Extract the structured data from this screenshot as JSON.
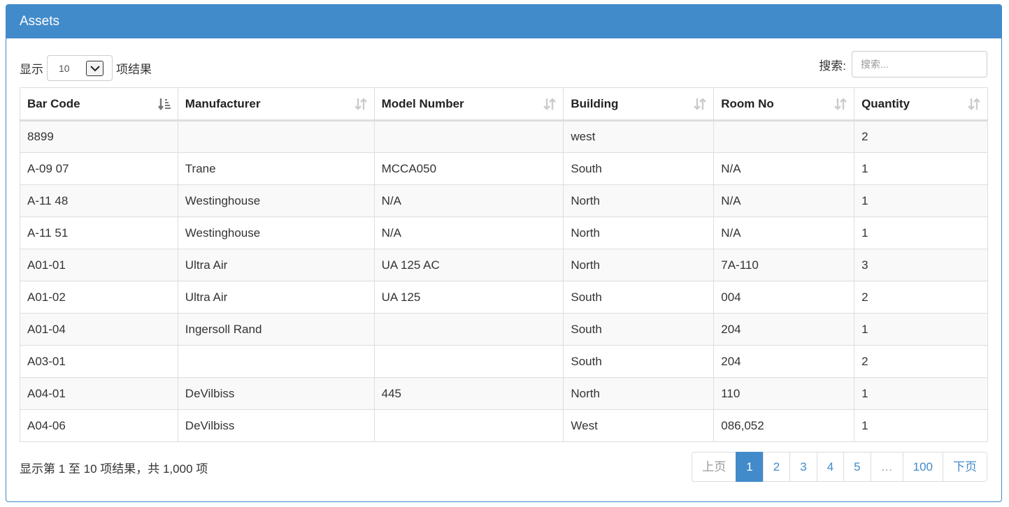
{
  "panel": {
    "title": "Assets"
  },
  "length": {
    "prefix": "显示",
    "value": "10",
    "suffix": "项结果"
  },
  "search": {
    "label": "搜索:",
    "placeholder": "搜索..."
  },
  "table": {
    "columns": [
      {
        "label": "Bar Code",
        "sort": "sorted-asc"
      },
      {
        "label": "Manufacturer",
        "sort": "sortable"
      },
      {
        "label": "Model Number",
        "sort": "sortable"
      },
      {
        "label": "Building",
        "sort": "sortable"
      },
      {
        "label": "Room No",
        "sort": "sortable"
      },
      {
        "label": "Quantity",
        "sort": "sortable"
      }
    ],
    "rows": [
      [
        "8899",
        "",
        "",
        "west",
        "",
        "2"
      ],
      [
        "A-09 07",
        "Trane",
        "MCCA050",
        "South",
        "N/A",
        "1"
      ],
      [
        "A-11 48",
        "Westinghouse",
        "N/A",
        "North",
        "N/A",
        "1"
      ],
      [
        "A-11 51",
        "Westinghouse",
        "N/A",
        "North",
        "N/A",
        "1"
      ],
      [
        "A01-01",
        "Ultra Air",
        "UA 125 AC",
        "North",
        "7A-110",
        "3"
      ],
      [
        "A01-02",
        "Ultra Air",
        "UA 125",
        "South",
        "004",
        "2"
      ],
      [
        "A01-04",
        "Ingersoll Rand",
        "",
        "South",
        "204",
        "1"
      ],
      [
        "A03-01",
        "",
        "",
        "South",
        "204",
        "2"
      ],
      [
        "A04-01",
        "DeVilbiss",
        "445",
        "North",
        "110",
        "1"
      ],
      [
        "A04-06",
        "DeVilbiss",
        "",
        "West",
        "086,052",
        "1"
      ]
    ]
  },
  "info": "显示第 1 至 10 项结果，共 1,000 项",
  "pagination": {
    "prev": "上页",
    "pages": [
      "1",
      "2",
      "3",
      "4",
      "5",
      "…",
      "100"
    ],
    "active": "1",
    "next": "下页"
  },
  "colors": {
    "primary": "#428bca",
    "border": "#dddddd",
    "stripe": "#f9f9f9"
  }
}
